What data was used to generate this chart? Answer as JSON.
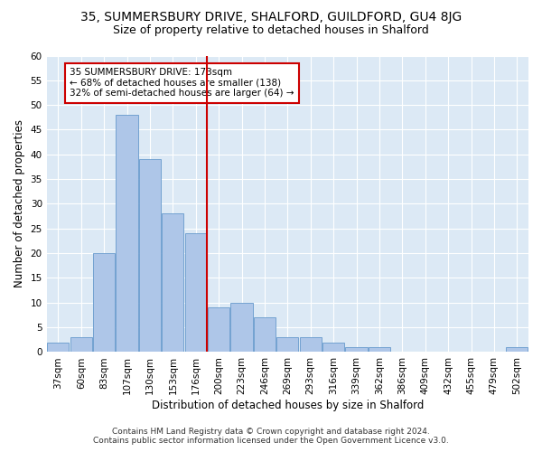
{
  "title1": "35, SUMMERSBURY DRIVE, SHALFORD, GUILDFORD, GU4 8JG",
  "title2": "Size of property relative to detached houses in Shalford",
  "xlabel": "Distribution of detached houses by size in Shalford",
  "ylabel": "Number of detached properties",
  "categories": [
    "37sqm",
    "60sqm",
    "83sqm",
    "107sqm",
    "130sqm",
    "153sqm",
    "176sqm",
    "200sqm",
    "223sqm",
    "246sqm",
    "269sqm",
    "293sqm",
    "316sqm",
    "339sqm",
    "362sqm",
    "386sqm",
    "409sqm",
    "432sqm",
    "455sqm",
    "479sqm",
    "502sqm"
  ],
  "values": [
    2,
    3,
    20,
    48,
    39,
    28,
    24,
    9,
    10,
    7,
    3,
    3,
    2,
    1,
    1,
    0,
    0,
    0,
    0,
    0,
    1
  ],
  "bar_color": "#aec6e8",
  "bar_edge_color": "#6699cc",
  "vline_color": "#cc0000",
  "annotation_text": "35 SUMMERSBURY DRIVE: 173sqm\n← 68% of detached houses are smaller (138)\n32% of semi-detached houses are larger (64) →",
  "annotation_box_color": "#ffffff",
  "annotation_box_edge": "#cc0000",
  "ylim": [
    0,
    60
  ],
  "yticks": [
    0,
    5,
    10,
    15,
    20,
    25,
    30,
    35,
    40,
    45,
    50,
    55,
    60
  ],
  "footer": "Contains HM Land Registry data © Crown copyright and database right 2024.\nContains public sector information licensed under the Open Government Licence v3.0.",
  "fig_bg_color": "#ffffff",
  "plot_bg_color": "#dce9f5",
  "grid_color": "#ffffff",
  "title1_fontsize": 10,
  "title2_fontsize": 9,
  "xlabel_fontsize": 8.5,
  "ylabel_fontsize": 8.5,
  "tick_fontsize": 7.5,
  "footer_fontsize": 6.5,
  "annotation_fontsize": 7.5,
  "vline_bar_index": 6
}
